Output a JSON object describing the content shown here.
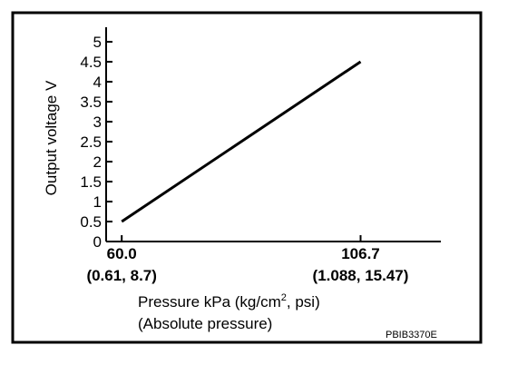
{
  "chart_data": {
    "type": "line",
    "ylabel": "Output voltage V",
    "xlabel_line1_main": "Pressure kPa (kg/cm",
    "xlabel_line1_sup": "2",
    "xlabel_line1_tail": ", psi)",
    "xlabel_line2": "(Absolute pressure)",
    "x_ticks": [
      {
        "value": 60.0,
        "label": "60.0",
        "sublabel": "(0.61, 8.7)"
      },
      {
        "value": 106.7,
        "label": "106.7",
        "sublabel": "(1.088, 15.47)"
      }
    ],
    "y_ticks": [
      "0",
      "0.5",
      "1",
      "1.5",
      "2",
      "2.5",
      "3",
      "3.5",
      "4",
      "4.5",
      "5"
    ],
    "ylim": [
      0,
      5
    ],
    "xlim": [
      56.95,
      122.4
    ],
    "series": [
      {
        "x": [
          60.0,
          106.7
        ],
        "y": [
          0.5,
          4.5
        ]
      }
    ],
    "grid": false,
    "legend": "none"
  },
  "figure_code": "PBIB3370E",
  "colors": {
    "line": "#000000",
    "frame": "#000000",
    "background": "#ffffff"
  }
}
